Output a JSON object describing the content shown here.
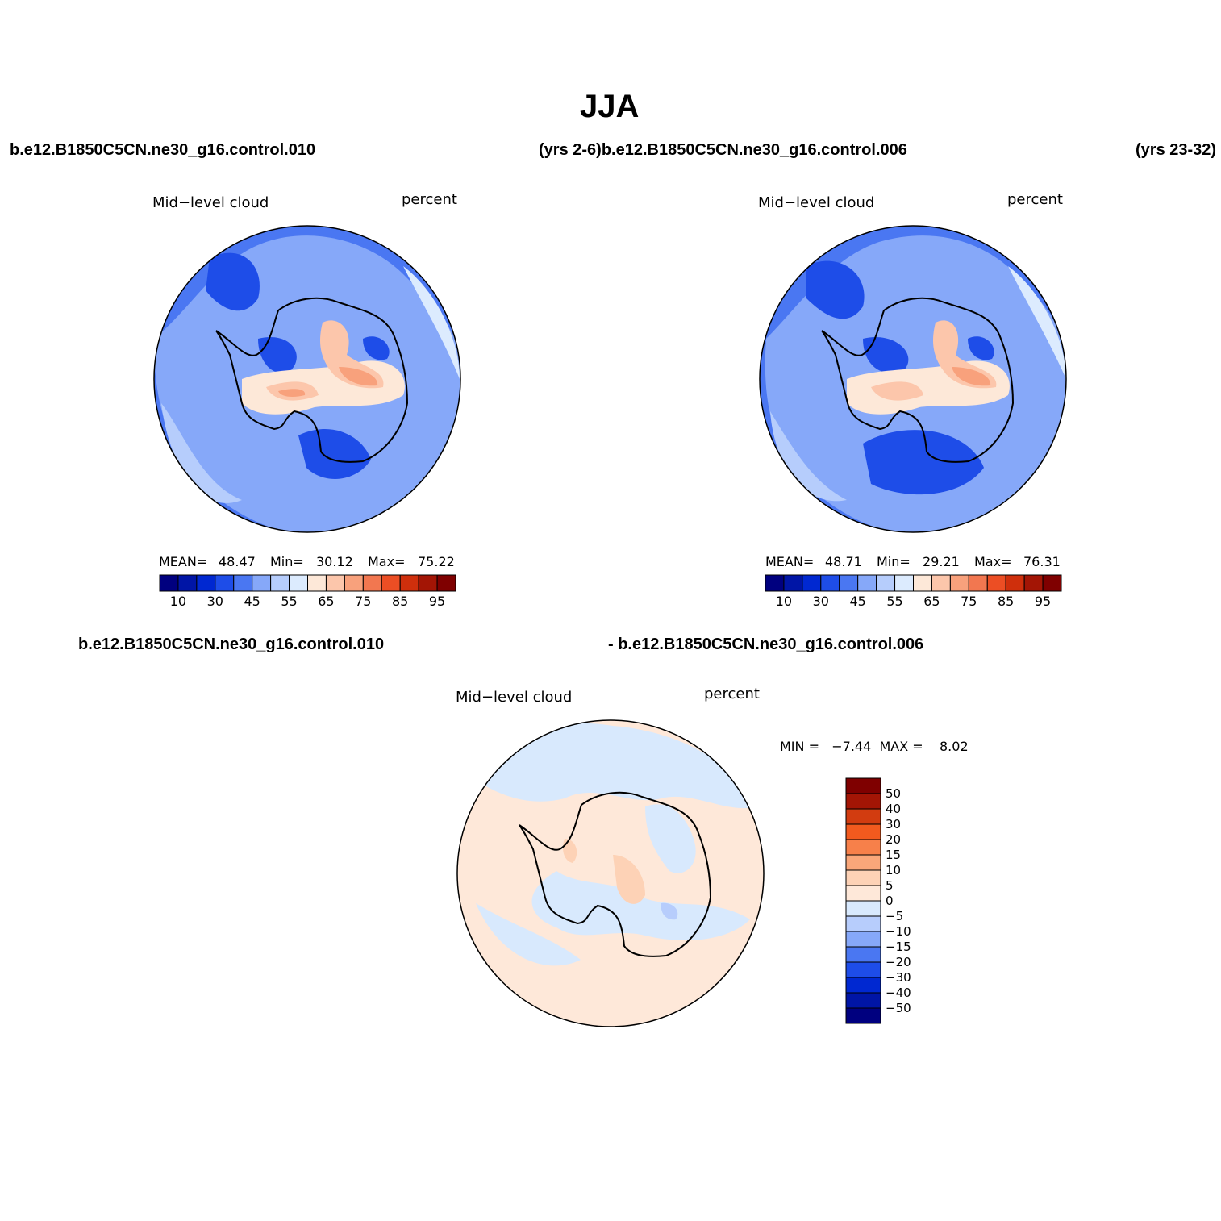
{
  "figure": {
    "title": "JJA",
    "top_left_case": "b.e12.B1850C5CN.ne30_g16.control.010",
    "top_mid_label": "(yrs 2-6)b.e12.B1850C5CN.ne30_g16.control.006",
    "top_right_label": "(yrs 23-32)",
    "bottom_left_case": "b.e12.B1850C5CN.ne30_g16.control.010",
    "bottom_right_case": "- b.e12.B1850C5CN.ne30_g16.control.006"
  },
  "panels": [
    {
      "variable": "Mid−level cloud",
      "units": "percent",
      "mean_label": "MEAN=",
      "mean": "48.47",
      "min_label": "Min=",
      "min": "30.12",
      "max_label": "Max=",
      "max": "75.22"
    },
    {
      "variable": "Mid−level cloud",
      "units": "percent",
      "mean_label": "MEAN=",
      "mean": "48.71",
      "min_label": "Min=",
      "min": "29.21",
      "max_label": "Max=",
      "max": "76.31"
    },
    {
      "variable": "Mid−level cloud",
      "units": "percent",
      "minmax_text": "MIN =   −7.44  MAX =    8.02"
    }
  ],
  "chart_data": [
    {
      "type": "heatmap",
      "title": "Mid-level cloud (b.e12.B1850C5CN.ne30_g16.control.010, yrs 2-6)",
      "projection": "south polar stereographic",
      "units": "percent",
      "stats": {
        "mean": 48.47,
        "min": 30.12,
        "max": 75.22
      },
      "colorbar": {
        "levels": [
          10,
          20,
          30,
          35,
          40,
          45,
          50,
          55,
          60,
          65,
          70,
          75,
          80,
          85,
          90,
          95
        ],
        "tick_labels": [
          "10",
          "30",
          "45",
          "55",
          "65",
          "75",
          "85",
          "95"
        ],
        "colors": [
          "#00007f",
          "#0015a6",
          "#0028d1",
          "#1e4de8",
          "#4a77f2",
          "#86a8f9",
          "#b6cdfc",
          "#dcebfe",
          "#fde8d8",
          "#fcc6ab",
          "#f8a17c",
          "#f27750",
          "#ec4e24",
          "#cf2f0c",
          "#a31505",
          "#7f0000"
        ]
      }
    },
    {
      "type": "heatmap",
      "title": "Mid-level cloud (b.e12.B1850C5CN.ne30_g16.control.006, yrs 23-32)",
      "projection": "south polar stereographic",
      "units": "percent",
      "stats": {
        "mean": 48.71,
        "min": 29.21,
        "max": 76.31
      },
      "colorbar": {
        "levels": [
          10,
          20,
          30,
          35,
          40,
          45,
          50,
          55,
          60,
          65,
          70,
          75,
          80,
          85,
          90,
          95
        ],
        "tick_labels": [
          "10",
          "30",
          "45",
          "55",
          "65",
          "75",
          "85",
          "95"
        ],
        "colors": [
          "#00007f",
          "#0015a6",
          "#0028d1",
          "#1e4de8",
          "#4a77f2",
          "#86a8f9",
          "#b6cdfc",
          "#dcebfe",
          "#fde8d8",
          "#fcc6ab",
          "#f8a17c",
          "#f27750",
          "#ec4e24",
          "#cf2f0c",
          "#a31505",
          "#7f0000"
        ]
      }
    },
    {
      "type": "heatmap",
      "title": "Mid-level cloud difference (control.010 - control.006)",
      "projection": "south polar stereographic",
      "units": "percent",
      "stats": {
        "min": -7.44,
        "max": 8.02
      },
      "colorbar": {
        "orientation": "vertical",
        "labels": [
          "50",
          "40",
          "30",
          "20",
          "15",
          "10",
          "5",
          "0",
          "−5",
          "−10",
          "−15",
          "−20",
          "−30",
          "−40",
          "−50"
        ],
        "colors": [
          "#7f0000",
          "#a31505",
          "#d23c10",
          "#f25a1e",
          "#f7804a",
          "#faa77a",
          "#fdd2b6",
          "#fee8d9",
          "#d8e9fd",
          "#b7cdfc",
          "#86a8f9",
          "#4a77f2",
          "#1e4de8",
          "#0028d1",
          "#0015a6",
          "#00007f"
        ]
      }
    }
  ]
}
